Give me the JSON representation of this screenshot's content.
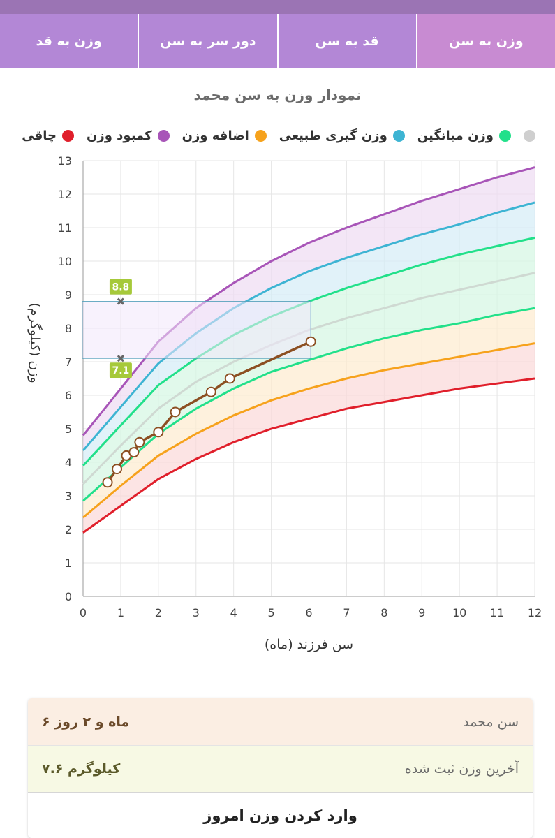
{
  "tabs": [
    {
      "label": "وزن به سن",
      "active": true
    },
    {
      "label": "قد به سن",
      "active": false
    },
    {
      "label": "دور سر به سن",
      "active": false
    },
    {
      "label": "وزن به قد",
      "active": false
    }
  ],
  "chart_title": "نمودار وزن به سن محمد",
  "legend": [
    {
      "label": "چاقی",
      "color": "#e01f2b"
    },
    {
      "label": "کمبود وزن",
      "color": "#a855b8"
    },
    {
      "label": "اضافه وزن",
      "color": "#f6a21c"
    },
    {
      "label": "وزن گیری طبیعی",
      "color": "#3db4d3"
    },
    {
      "label": "وزن میانگین",
      "color": "#22e08a"
    },
    {
      "label": "",
      "color": "#cfcfcf"
    }
  ],
  "chart_data": {
    "type": "line",
    "xlabel": "سن فرزند (ماه)",
    "ylabel": "وزن (کیلوگرم)",
    "xlim": [
      0,
      12
    ],
    "ylim": [
      0,
      13
    ],
    "x_ticks": [
      "0",
      "1",
      "2",
      "3",
      "4",
      "5",
      "6",
      "7",
      "8",
      "9",
      "10",
      "11",
      "12"
    ],
    "y_ticks": [
      "0",
      "1",
      "2",
      "3",
      "4",
      "5",
      "6",
      "7",
      "8",
      "9",
      "10",
      "11",
      "12",
      "13"
    ],
    "grid": true,
    "x": [
      0,
      1,
      2,
      3,
      4,
      5,
      6,
      7,
      8,
      9,
      10,
      11,
      12
    ],
    "curves": [
      {
        "color": "#e01f2b",
        "values": [
          1.9,
          2.7,
          3.5,
          4.1,
          4.6,
          5.0,
          5.3,
          5.6,
          5.8,
          6.0,
          6.2,
          6.35,
          6.5
        ]
      },
      {
        "color": "#f6a21c",
        "values": [
          2.35,
          3.3,
          4.2,
          4.85,
          5.4,
          5.85,
          6.2,
          6.5,
          6.75,
          6.95,
          7.15,
          7.35,
          7.55
        ]
      },
      {
        "color": "#22e08a",
        "values": [
          2.85,
          3.85,
          4.85,
          5.6,
          6.2,
          6.7,
          7.05,
          7.4,
          7.7,
          7.95,
          8.15,
          8.4,
          8.6
        ]
      },
      {
        "color": "#cfd9d2",
        "values": [
          3.35,
          4.5,
          5.6,
          6.4,
          7.0,
          7.5,
          7.95,
          8.3,
          8.6,
          8.9,
          9.15,
          9.4,
          9.65
        ]
      },
      {
        "color": "#22e08a",
        "values": [
          3.9,
          5.1,
          6.3,
          7.1,
          7.8,
          8.35,
          8.8,
          9.2,
          9.55,
          9.9,
          10.2,
          10.45,
          10.7
        ]
      },
      {
        "color": "#3db4d3",
        "values": [
          4.35,
          5.65,
          6.95,
          7.85,
          8.6,
          9.2,
          9.7,
          10.1,
          10.45,
          10.8,
          11.1,
          11.45,
          11.75
        ]
      },
      {
        "color": "#a855b8",
        "values": [
          4.8,
          6.2,
          7.6,
          8.6,
          9.35,
          10.0,
          10.55,
          11.0,
          11.4,
          11.8,
          12.15,
          12.5,
          12.8
        ]
      }
    ],
    "band_colors": [
      "#fbd8d8",
      "#fdebcf",
      "#d4f7e3",
      "#d4f7e3",
      "#d4ecf6",
      "#eedcf2"
    ],
    "series": [
      {
        "name": "محمد",
        "color": "#8c4f22",
        "points": [
          [
            0.65,
            3.4
          ],
          [
            0.9,
            3.8
          ],
          [
            1.15,
            4.2
          ],
          [
            1.35,
            4.3
          ],
          [
            1.5,
            4.6
          ],
          [
            2.0,
            4.9
          ],
          [
            2.45,
            5.5
          ],
          [
            3.4,
            6.1
          ],
          [
            3.9,
            6.5
          ],
          [
            6.05,
            7.6
          ]
        ]
      }
    ],
    "annotation": {
      "x": 1,
      "x_end": 6.05,
      "high": 8.8,
      "low": 7.1,
      "high_label": "8.8",
      "low_label": "7.1"
    }
  },
  "info": {
    "age_label": "سن محمد",
    "age_value": "۶ ماه و ۲ روز",
    "weight_label": "آخرین وزن ثبت شده",
    "weight_value": "۷.۶ کیلوگرم"
  },
  "enter_button": "وارد کردن وزن امروز"
}
